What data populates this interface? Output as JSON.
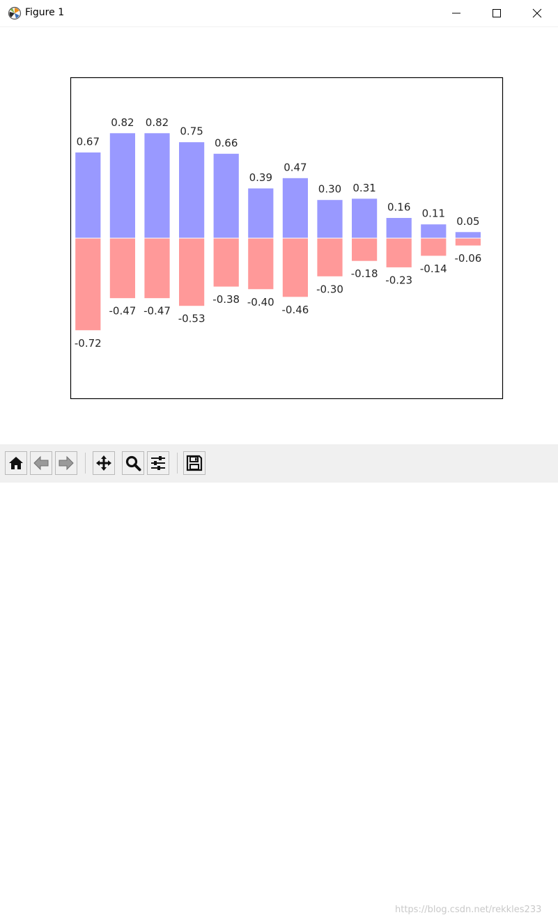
{
  "window": {
    "title": "Figure 1"
  },
  "colors": {
    "positive_bar": "#9999ff",
    "negative_bar": "#ff9999",
    "bar_edge": "#ffffff",
    "axes_frame": "#000000"
  },
  "chart_data": {
    "type": "bar",
    "title": "",
    "xlabel": "",
    "ylabel": "",
    "axes_visible": false,
    "frame": true,
    "grid": false,
    "x": [
      0,
      1,
      2,
      3,
      4,
      5,
      6,
      7,
      8,
      9,
      10,
      11
    ],
    "xlim": [
      -0.5,
      12
    ],
    "ylim": [
      -1.25,
      1.25
    ],
    "series": [
      {
        "values": [
          0.67,
          0.82,
          0.82,
          0.75,
          0.66,
          0.39,
          0.47,
          0.3,
          0.31,
          0.16,
          0.11,
          0.05
        ],
        "labels": [
          "0.67",
          "0.82",
          "0.82",
          "0.75",
          "0.66",
          "0.39",
          "0.47",
          "0.30",
          "0.31",
          "0.16",
          "0.11",
          "0.05"
        ],
        "label_position": "above"
      },
      {
        "values": [
          -0.72,
          -0.47,
          -0.47,
          -0.53,
          -0.38,
          -0.4,
          -0.46,
          -0.3,
          -0.18,
          -0.23,
          -0.14,
          -0.06
        ],
        "labels": [
          "-0.72",
          "-0.47",
          "-0.47",
          "-0.53",
          "-0.38",
          "-0.40",
          "-0.46",
          "-0.30",
          "-0.18",
          "-0.23",
          "-0.14",
          "-0.06"
        ],
        "label_position": "below"
      }
    ]
  },
  "toolbar": {
    "buttons": [
      {
        "name": "home",
        "icon": "home-icon"
      },
      {
        "name": "back",
        "icon": "arrow-left-icon"
      },
      {
        "name": "forward",
        "icon": "arrow-right-icon"
      },
      {
        "name": "pan",
        "icon": "move-icon"
      },
      {
        "name": "zoom",
        "icon": "magnifier-icon"
      },
      {
        "name": "configure-subplots",
        "icon": "sliders-icon"
      },
      {
        "name": "save",
        "icon": "floppy-disk-icon"
      }
    ]
  },
  "watermark": "https://blog.csdn.net/rekkles233"
}
